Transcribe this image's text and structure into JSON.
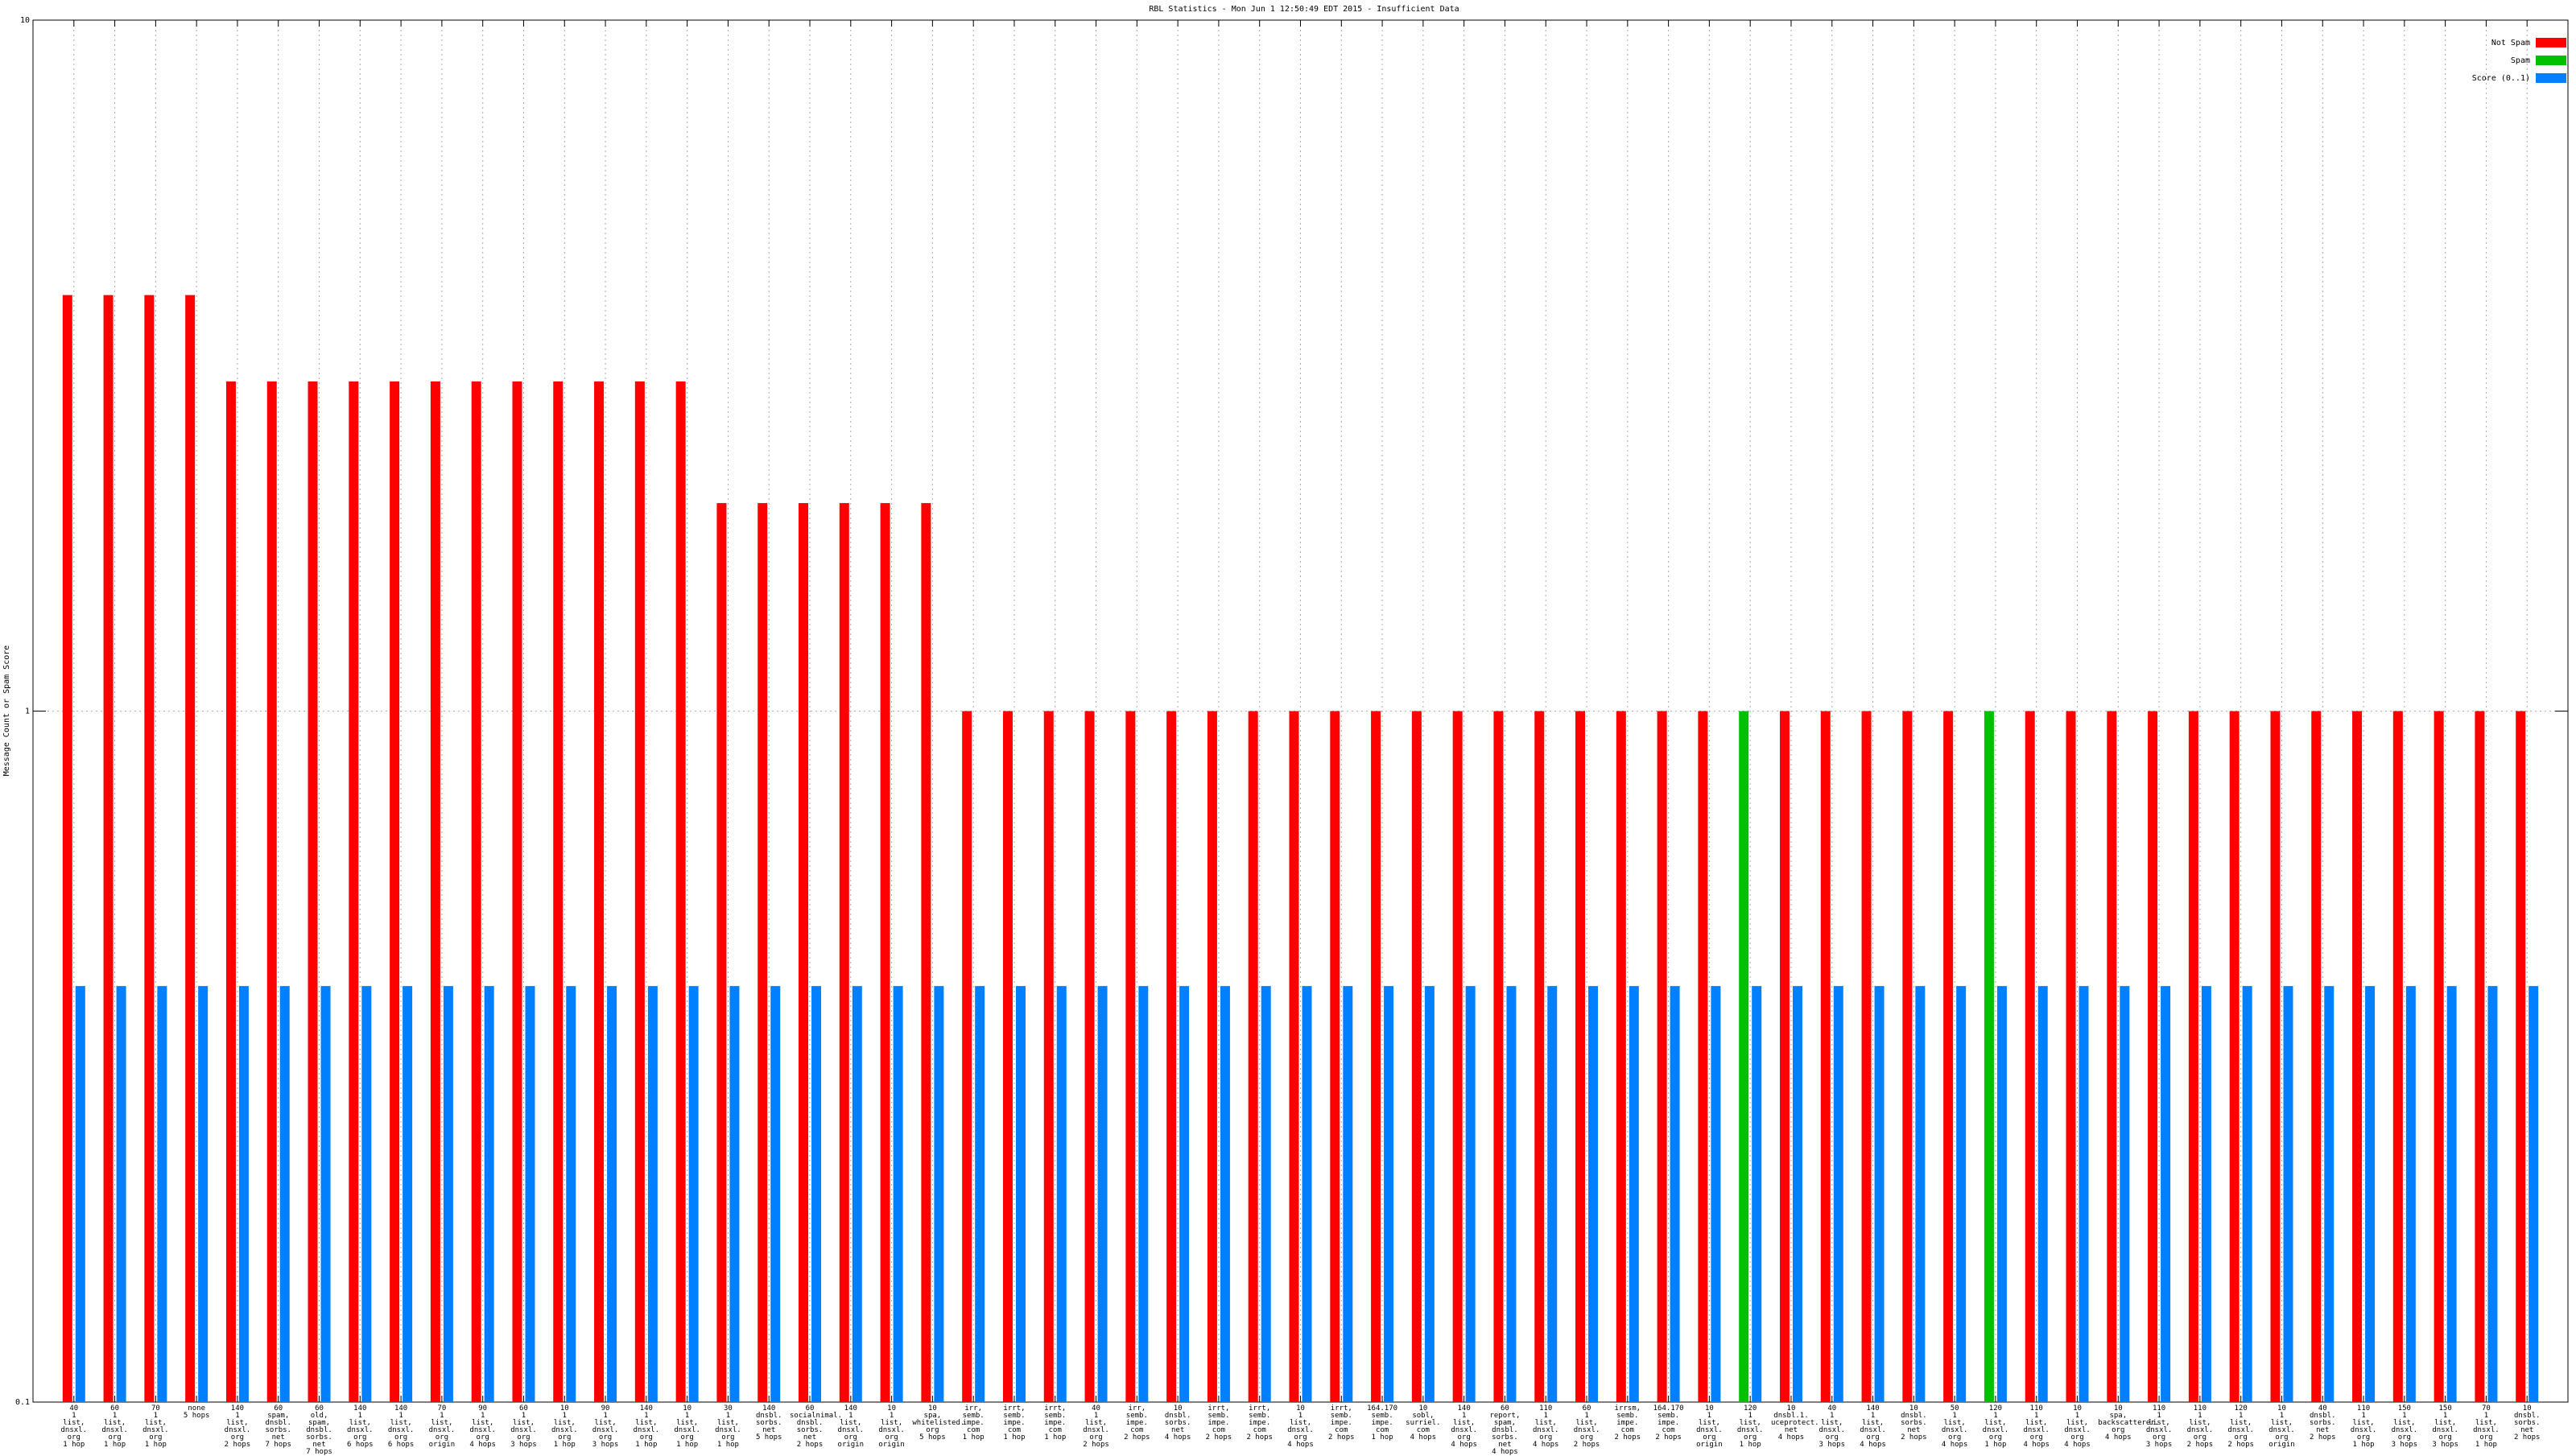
{
  "chart_data": {
    "type": "bar",
    "title": "RBL Statistics - Mon Jun  1 12:50:49 EDT 2015 - Insufficient Data",
    "y_label": "Message Count or Spam Score",
    "log_scale": true,
    "grid": true,
    "legend": "top-right",
    "ylim": [
      0.1,
      10
    ],
    "yticks": [
      0.1,
      1,
      10
    ],
    "categories": [
      "40\n1\nlist,\ndnsxl.\norg\n1 hop",
      "60\n1\nlist,\ndnsxl.\norg\n1 hop",
      "70\n1\nlist,\ndnsxl.\norg\n1 hop",
      "none\n5 hops",
      "140\n1\nlist,\ndnsxl.\norg\n2 hops",
      "60\nspam,\ndnsbl.\nsorbs.\nnet\n7 hops",
      "60\nold,\nspam,\ndnsbl.\nsorbs.\nnet\n7 hops",
      "140\n1\nlist,\ndnsxl.\norg\n6 hops",
      "140\n1\nlist,\ndnsxl.\norg\n6 hops",
      "70\n1\nlist,\ndnsxl.\norg\norigin",
      "90\n1\nlist,\ndnsxl.\norg\n4 hops",
      "60\n1\nlist,\ndnsxl.\norg\n3 hops",
      "10\n1\nlist,\ndnsxl.\norg\n1 hop",
      "90\n1\nlist,\ndnsxl.\norg\n3 hops",
      "140\n1\nlist,\ndnsxl.\norg\n1 hop",
      "10\n1\nlist,\ndnsxl.\norg\n1 hop",
      "30\n1\nlist,\ndnsxl.\norg\n1 hop",
      "140\ndnsbl.\nsorbs.\nnet\n5 hops",
      "60\nsocialnimal.\ndnsbl.\nsorbs.\nnet\n2 hops",
      "140\n1\nlist,\ndnsxl.\norg\norigin",
      "10\n1\nlist,\ndnsxl.\norg\norigin",
      "10\nspa,\nwhitelisted.\norg\n5 hops",
      "irr,\nsemb.\nimpe.\ncom\n1 hop",
      "irrt,\nsemb.\nimpe.\ncom\n1 hop",
      "irrt,\nsemb.\nimpe.\ncom\n1 hop",
      "40\n1\nlist,\ndnsxl.\norg\n2 hops",
      "irr,\nsemb.\nimpe.\ncom\n2 hops",
      "10\ndnsbl.\nsorbs.\nnet\n4 hops",
      "irrt,\nsemb.\nimpe.\ncom\n2 hops",
      "irrt,\nsemb.\nimpe.\ncom\n2 hops",
      "10\n1\nlist,\ndnsxl.\norg\n4 hops",
      "irrt,\nsemb.\nimpe.\ncom\n2 hops",
      "164.170\nsemb.\nimpe.\ncom\n1 hop",
      "10\nsobl,\nsurriel.\ncom\n4 hops",
      "140\n1\nlist,\ndnsxl.\norg\n4 hops",
      "60\nreport,\nspam,\ndnsbl.\nsorbs.\nnet\n4 hops",
      "110\n1\nlist,\ndnsxl.\norg\n4 hops",
      "60\n1\nlist,\ndnsxl.\norg\n2 hops",
      "irrsm,\nsemb.\nimpe.\ncom\n2 hops",
      "164.170\nsemb.\nimpe.\ncom\n2 hops",
      "10\n1\nlist,\ndnsxl.\norg\norigin",
      "120\n1\nlist,\ndnsxl.\norg\n1 hop",
      "10\ndnsbl.1.\nuceprotect.\nnet\n4 hops",
      "40\n1\nlist,\ndnsxl.\norg\n3 hops",
      "140\n1\nlist,\ndnsxl.\norg\n4 hops",
      "10\ndnsbl.\nsorbs.\nnet\n2 hops",
      "50\n1\nlist,\ndnsxl.\norg\n4 hops",
      "120\n1\nlist,\ndnsxl.\norg\n1 hop",
      "110\n1\nlist,\ndnsxl.\norg\n4 hops",
      "10\n1\nlist,\ndnsxl.\norg\n4 hops",
      "10\nspa,\nbackscatterer.\norg\n4 hops",
      "110\n1\nlist,\ndnsxl.\norg\n3 hops",
      "110\n1\nlist,\ndnsxl.\norg\n2 hops",
      "120\n1\nlist,\ndnsxl.\norg\n2 hops",
      "10\n1\nlist,\ndnsxl.\norg\norigin",
      "40\ndnsbl.\nsorbs.\nnet\n2 hops",
      "110\n1\nlist,\ndnsxl.\norg\n1 hop",
      "150\n1\nlist,\ndnsxl.\norg\n3 hops",
      "150\n1\nlist,\ndnsxl.\norg\n3 hops",
      "70\n1\nlist,\ndnsxl.\norg\n1 hop",
      "10\ndnsbl.\nsorbs.\nnet\n2 hops"
    ],
    "series": [
      {
        "name": "Not Spam",
        "color": "#ff0000",
        "offset": -1,
        "values": [
          4,
          4,
          4,
          4,
          3,
          3,
          3,
          3,
          3,
          3,
          3,
          3,
          3,
          3,
          3,
          3,
          2,
          2,
          2,
          2,
          2,
          2,
          1,
          1,
          1,
          1,
          1,
          1,
          1,
          1,
          1,
          1,
          1,
          1,
          1,
          1,
          1,
          1,
          1,
          1,
          1,
          null,
          1,
          1,
          1,
          1,
          1,
          null,
          1,
          1,
          1,
          1,
          1,
          1,
          1,
          1,
          1,
          1,
          1,
          1,
          1
        ]
      },
      {
        "name": "Spam",
        "color": "#00c000",
        "offset": -1,
        "values": [
          null,
          null,
          null,
          null,
          null,
          null,
          null,
          null,
          null,
          null,
          null,
          null,
          null,
          null,
          null,
          null,
          null,
          null,
          null,
          null,
          null,
          null,
          null,
          null,
          null,
          null,
          null,
          null,
          null,
          null,
          null,
          null,
          null,
          null,
          null,
          null,
          null,
          null,
          null,
          null,
          null,
          1,
          null,
          null,
          null,
          null,
          null,
          1,
          null,
          null,
          null,
          null,
          null,
          null,
          null,
          null,
          null,
          null,
          null,
          null,
          null
        ]
      },
      {
        "name": "Score (0..1)",
        "color": "#0080ff",
        "offset": 1,
        "values": [
          0.4,
          0.4,
          0.4,
          0.4,
          0.4,
          0.4,
          0.4,
          0.4,
          0.4,
          0.4,
          0.4,
          0.4,
          0.4,
          0.4,
          0.4,
          0.4,
          0.4,
          0.4,
          0.4,
          0.4,
          0.4,
          0.4,
          0.4,
          0.4,
          0.4,
          0.4,
          0.4,
          0.4,
          0.4,
          0.4,
          0.4,
          0.4,
          0.4,
          0.4,
          0.4,
          0.4,
          0.4,
          0.4,
          0.4,
          0.4,
          0.4,
          0.4,
          0.4,
          0.4,
          0.4,
          0.4,
          0.4,
          0.4,
          0.4,
          0.4,
          0.4,
          0.4,
          0.4,
          0.4,
          0.4,
          0.4,
          0.4,
          0.4,
          0.4,
          0.4,
          0.4
        ]
      }
    ]
  }
}
